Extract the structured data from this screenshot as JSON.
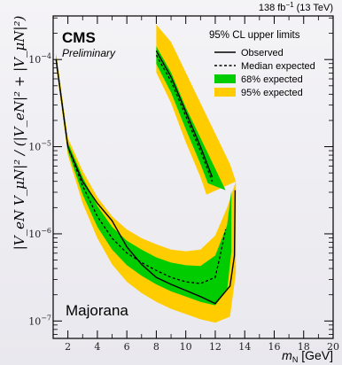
{
  "chart_data": {
    "type": "area",
    "lumi_text": "138 fb",
    "lumi_sup": "−1",
    "lumi_energy": " (13 TeV)",
    "experiment": "CMS",
    "status": "Preliminary",
    "model_label": "Majorana",
    "xlabel_var": "m",
    "xlabel_sub": "N",
    "xlabel_unit": " [GeV]",
    "ylabel": "|V_eN V_μN|² / (|V_eN|² + |V_μN|²)",
    "xlim": [
      1,
      20
    ],
    "ylim_log10": [
      -7.2,
      -3.5
    ],
    "x_ticks": [
      2,
      4,
      6,
      8,
      10,
      12,
      14,
      16,
      18,
      20
    ],
    "y_ticks": [
      {
        "exp": -7,
        "base": "10",
        "sup": "−7"
      },
      {
        "exp": -6,
        "base": "10",
        "sup": "−6"
      },
      {
        "exp": -5,
        "base": "10",
        "sup": "−5"
      },
      {
        "exp": -4,
        "base": "10",
        "sup": "−4"
      }
    ],
    "grid": false,
    "legend": {
      "title": "95% CL upper limits",
      "position": "top-right",
      "entries": [
        "Observed",
        "Median expected",
        "68% expected",
        "95% expected"
      ]
    },
    "colors": {
      "band68": "#00cc00",
      "band95": "#ffcc00",
      "line": "#000000"
    },
    "segments": [
      {
        "observed": [
          [
            1.2,
            -4.0
          ],
          [
            2.0,
            -5.0
          ],
          [
            3.0,
            -5.4
          ],
          [
            4.0,
            -5.65
          ],
          [
            5.0,
            -5.85
          ],
          [
            6.0,
            -6.15
          ],
          [
            7.0,
            -6.35
          ],
          [
            8.0,
            -6.5
          ],
          [
            9.0,
            -6.58
          ],
          [
            10.0,
            -6.65
          ],
          [
            11.0,
            -6.72
          ],
          [
            12.0,
            -6.8
          ],
          [
            13.0,
            -6.6
          ],
          [
            13.3,
            -6.25
          ],
          [
            13.35,
            -5.5
          ]
        ],
        "expected": [
          [
            1.2,
            -4.0
          ],
          [
            2.0,
            -5.0
          ],
          [
            3.0,
            -5.45
          ],
          [
            4.0,
            -5.8
          ],
          [
            5.0,
            -6.05
          ],
          [
            6.0,
            -6.22
          ],
          [
            7.0,
            -6.33
          ],
          [
            8.0,
            -6.42
          ],
          [
            9.0,
            -6.5
          ],
          [
            10.0,
            -6.55
          ],
          [
            11.0,
            -6.57
          ],
          [
            12.0,
            -6.5
          ],
          [
            12.4,
            -6.2
          ],
          [
            12.7,
            -5.95
          ]
        ],
        "band68_upper": [
          [
            1.2,
            -3.95
          ],
          [
            2.0,
            -4.95
          ],
          [
            3.0,
            -5.35
          ],
          [
            4.0,
            -5.68
          ],
          [
            5.0,
            -5.92
          ],
          [
            6.0,
            -6.08
          ],
          [
            7.0,
            -6.18
          ],
          [
            8.0,
            -6.27
          ],
          [
            9.0,
            -6.33
          ],
          [
            10.0,
            -6.36
          ],
          [
            11.0,
            -6.37
          ],
          [
            12.0,
            -6.25
          ],
          [
            12.8,
            -5.9
          ],
          [
            13.1,
            -5.5
          ]
        ],
        "band68_lower": [
          [
            1.2,
            -4.05
          ],
          [
            2.0,
            -5.05
          ],
          [
            3.0,
            -5.55
          ],
          [
            4.0,
            -5.92
          ],
          [
            5.0,
            -6.18
          ],
          [
            6.0,
            -6.36
          ],
          [
            7.0,
            -6.48
          ],
          [
            8.0,
            -6.58
          ],
          [
            9.0,
            -6.66
          ],
          [
            10.0,
            -6.72
          ],
          [
            11.0,
            -6.78
          ],
          [
            12.0,
            -6.82
          ],
          [
            12.8,
            -6.65
          ],
          [
            13.1,
            -6.2
          ]
        ],
        "band95_upper": [
          [
            1.2,
            -3.92
          ],
          [
            2.0,
            -4.9
          ],
          [
            3.0,
            -5.28
          ],
          [
            4.0,
            -5.58
          ],
          [
            5.0,
            -5.8
          ],
          [
            6.0,
            -5.95
          ],
          [
            7.0,
            -6.05
          ],
          [
            8.0,
            -6.12
          ],
          [
            9.0,
            -6.18
          ],
          [
            10.0,
            -6.2
          ],
          [
            11.0,
            -6.18
          ],
          [
            12.0,
            -6.02
          ],
          [
            12.8,
            -5.7
          ],
          [
            13.4,
            -5.4
          ]
        ],
        "band95_lower": [
          [
            1.2,
            -4.08
          ],
          [
            2.0,
            -5.1
          ],
          [
            3.0,
            -5.65
          ],
          [
            4.0,
            -6.05
          ],
          [
            5.0,
            -6.35
          ],
          [
            6.0,
            -6.55
          ],
          [
            7.0,
            -6.68
          ],
          [
            8.0,
            -6.78
          ],
          [
            9.0,
            -6.86
          ],
          [
            10.0,
            -6.92
          ],
          [
            11.0,
            -6.98
          ],
          [
            12.0,
            -7.02
          ],
          [
            13.0,
            -6.95
          ],
          [
            13.4,
            -6.45
          ]
        ]
      },
      {
        "observed": [
          [
            8.0,
            -3.9
          ],
          [
            9.0,
            -4.2
          ],
          [
            10.0,
            -4.6
          ],
          [
            11.0,
            -5.0
          ],
          [
            11.8,
            -5.35
          ]
        ],
        "expected": [
          [
            8.0,
            -3.95
          ],
          [
            9.0,
            -4.25
          ],
          [
            10.0,
            -4.65
          ],
          [
            11.0,
            -5.05
          ],
          [
            11.8,
            -5.4
          ]
        ],
        "band68_upper": [
          [
            8.0,
            -3.85
          ],
          [
            9.0,
            -4.15
          ],
          [
            10.0,
            -4.55
          ],
          [
            11.0,
            -4.9
          ],
          [
            12.0,
            -5.25
          ],
          [
            12.7,
            -5.5
          ]
        ],
        "band68_lower": [
          [
            8.0,
            -4.05
          ],
          [
            9.0,
            -4.38
          ],
          [
            10.0,
            -4.8
          ],
          [
            11.0,
            -5.2
          ],
          [
            11.5,
            -5.42
          ]
        ],
        "band95_upper": [
          [
            8.0,
            -3.6
          ],
          [
            9.0,
            -3.8
          ],
          [
            10.0,
            -4.15
          ],
          [
            11.0,
            -4.5
          ],
          [
            12.0,
            -4.85
          ],
          [
            13.0,
            -5.2
          ],
          [
            13.4,
            -5.4
          ]
        ],
        "band95_lower": [
          [
            8.0,
            -4.15
          ],
          [
            9.0,
            -4.5
          ],
          [
            10.0,
            -4.95
          ],
          [
            11.0,
            -5.35
          ],
          [
            11.4,
            -5.55
          ]
        ]
      }
    ]
  }
}
